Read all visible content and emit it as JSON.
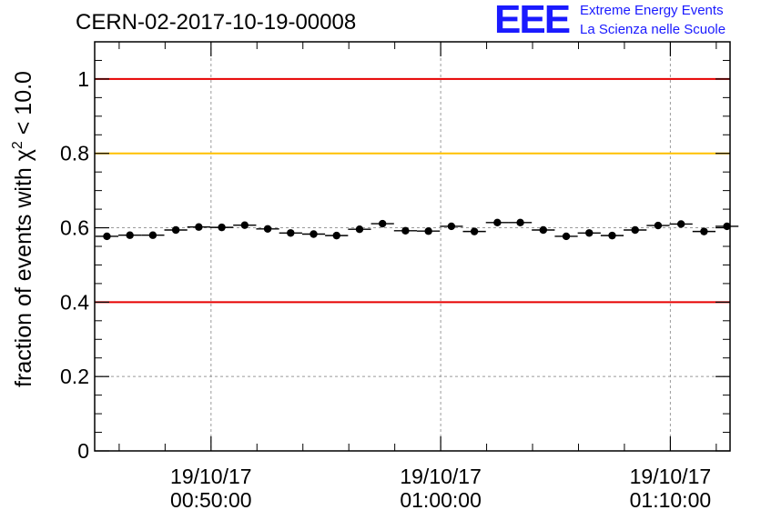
{
  "chart_data": {
    "type": "scatter",
    "title": "CERN-02-2017-10-19-00008",
    "ylabel": "fraction of events with χ² < 10.0",
    "xlabel": "",
    "ylim": [
      0,
      1.1
    ],
    "xlim": [
      "19/10/17 00:44:56",
      "19/10/17 01:12:36"
    ],
    "grid": true,
    "x_ticks": [
      {
        "date": "19/10/17",
        "time": "00:50:00"
      },
      {
        "date": "19/10/17",
        "time": "01:00:00"
      },
      {
        "date": "19/10/17",
        "time": "01:10:00"
      }
    ],
    "y_ticks": [
      "0",
      "0.2",
      "0.4",
      "0.6",
      "0.8",
      "1"
    ],
    "y_tick_values": [
      0,
      0.2,
      0.4,
      0.6,
      0.8,
      1.0
    ],
    "reference_lines": [
      {
        "y": 1.0,
        "color": "#e60000"
      },
      {
        "y": 0.8,
        "color": "#ffc000"
      },
      {
        "y": 0.4,
        "color": "#e60000"
      }
    ],
    "series": [
      {
        "x": [
          "00:45:28",
          "00:46:28",
          "00:47:28",
          "00:48:28",
          "00:49:28",
          "00:50:28",
          "00:51:28",
          "00:52:28",
          "00:53:28",
          "00:54:28",
          "00:55:28",
          "00:56:28",
          "00:57:28",
          "00:58:28",
          "00:59:28",
          "01:00:28",
          "01:01:28",
          "01:02:28",
          "01:03:28",
          "01:04:28",
          "01:05:28",
          "01:06:28",
          "01:07:28",
          "01:08:28",
          "01:09:28",
          "01:10:28",
          "01:11:28",
          "01:12:28"
        ],
        "values": [
          0.577,
          0.58,
          0.58,
          0.594,
          0.602,
          0.601,
          0.607,
          0.597,
          0.586,
          0.583,
          0.579,
          0.596,
          0.611,
          0.592,
          0.591,
          0.604,
          0.59,
          0.614,
          0.614,
          0.594,
          0.577,
          0.586,
          0.579,
          0.594,
          0.606,
          0.61,
          0.59,
          0.604
        ],
        "errors": [
          0.008,
          0.008,
          0.008,
          0.008,
          0.008,
          0.008,
          0.008,
          0.008,
          0.008,
          0.008,
          0.008,
          0.008,
          0.008,
          0.008,
          0.008,
          0.008,
          0.008,
          0.008,
          0.008,
          0.008,
          0.008,
          0.008,
          0.008,
          0.008,
          0.008,
          0.008,
          0.008,
          0.008
        ],
        "bin_width_seconds": 60,
        "color": "#000000"
      }
    ]
  },
  "logo": {
    "mark": "EEE",
    "line1": "Extreme Energy Events",
    "line2": "La Scienza nelle Scuole",
    "color": "#1a1aff"
  }
}
